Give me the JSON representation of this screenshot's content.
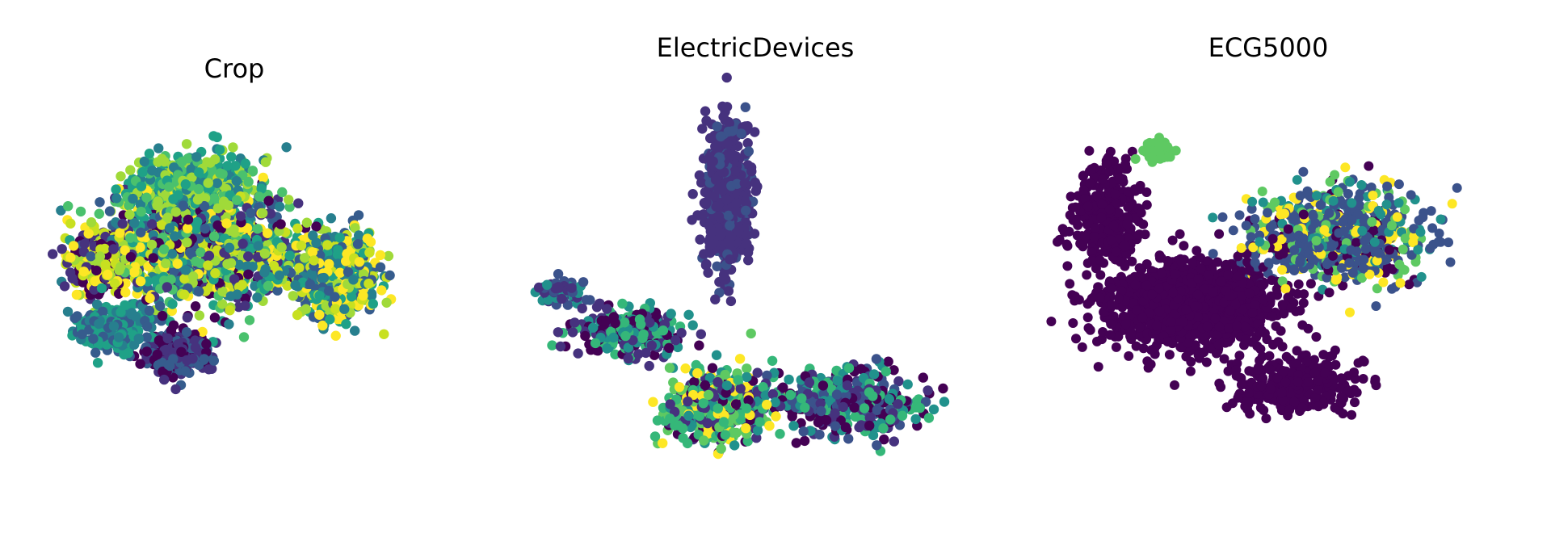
{
  "chart_data": [
    {
      "type": "scatter",
      "title": "Crop",
      "xlabel": "",
      "ylabel": "",
      "axes_visible": false,
      "grid": false,
      "colormap": "viridis",
      "xlim": [
        0,
        10
      ],
      "ylim": [
        0,
        10
      ],
      "class_colors": [
        "#440154",
        "#46327e",
        "#365c8d",
        "#277f8e",
        "#1fa187",
        "#4ac16d",
        "#a0da39",
        "#c8e020",
        "#fde725"
      ],
      "clusters": [
        {
          "cx": 4.0,
          "cy": 5.2,
          "sx": 2.4,
          "sy": 1.8,
          "n": 1300,
          "colors": [
            0,
            1,
            2,
            3,
            4,
            5,
            6,
            7,
            8
          ]
        },
        {
          "cx": 3.8,
          "cy": 7.2,
          "sx": 1.6,
          "sy": 1.1,
          "n": 500,
          "colors": [
            4,
            5,
            6,
            3
          ]
        },
        {
          "cx": 3.3,
          "cy": 1.8,
          "sx": 0.75,
          "sy": 0.6,
          "n": 450,
          "colors": [
            0,
            1,
            2
          ]
        },
        {
          "cx": 1.6,
          "cy": 2.6,
          "sx": 0.9,
          "sy": 0.7,
          "n": 260,
          "colors": [
            3,
            2,
            4
          ]
        },
        {
          "cx": 7.6,
          "cy": 4.3,
          "sx": 1.2,
          "sy": 1.4,
          "n": 550,
          "colors": [
            3,
            2,
            4,
            6,
            8,
            7
          ]
        },
        {
          "cx": 1.3,
          "cy": 4.8,
          "sx": 0.8,
          "sy": 1.0,
          "n": 350,
          "colors": [
            7,
            8,
            6,
            1,
            0
          ]
        }
      ]
    },
    {
      "type": "scatter",
      "title": "ElectricDevices",
      "xlabel": "",
      "ylabel": "",
      "axes_visible": false,
      "grid": false,
      "colormap": "viridis",
      "xlim": [
        0,
        10
      ],
      "ylim": [
        0,
        10
      ],
      "class_colors": [
        "#440154",
        "#46327e",
        "#3b528b",
        "#21918c",
        "#35b779",
        "#5ec962",
        "#fde725"
      ],
      "clusters": [
        {
          "cx": 4.4,
          "cy": 6.9,
          "sx": 0.45,
          "sy": 1.9,
          "n": 650,
          "colors": [
            1,
            1,
            1,
            1,
            2
          ]
        },
        {
          "cx": 2.3,
          "cy": 3.4,
          "sx": 1.3,
          "sy": 0.7,
          "n": 220,
          "colors": [
            1,
            0,
            4,
            3
          ]
        },
        {
          "cx": 4.2,
          "cy": 1.5,
          "sx": 1.1,
          "sy": 0.9,
          "n": 450,
          "colors": [
            4,
            1,
            0,
            3,
            5,
            6
          ]
        },
        {
          "cx": 7.0,
          "cy": 1.6,
          "sx": 1.6,
          "sy": 0.8,
          "n": 450,
          "colors": [
            1,
            0,
            4,
            3,
            2
          ]
        },
        {
          "cx": 0.8,
          "cy": 4.4,
          "sx": 0.5,
          "sy": 0.35,
          "n": 70,
          "colors": [
            1,
            3,
            2
          ]
        }
      ]
    },
    {
      "type": "scatter",
      "title": "ECG5000",
      "xlabel": "",
      "ylabel": "",
      "axes_visible": false,
      "grid": false,
      "colormap": "viridis",
      "xlim": [
        0,
        10
      ],
      "ylim": [
        0,
        10
      ],
      "class_colors": [
        "#440154",
        "#3b528b",
        "#21918c",
        "#5ec962",
        "#fde725"
      ],
      "clusters": [
        {
          "cx": 3.3,
          "cy": 4.2,
          "sx": 1.7,
          "sy": 1.1,
          "n": 1400,
          "colors": [
            0
          ]
        },
        {
          "cx": 1.6,
          "cy": 6.5,
          "sx": 0.7,
          "sy": 1.3,
          "n": 300,
          "colors": [
            0
          ]
        },
        {
          "cx": 5.3,
          "cy": 2.2,
          "sx": 1.3,
          "sy": 0.8,
          "n": 300,
          "colors": [
            0
          ]
        },
        {
          "cx": 6.2,
          "cy": 6.0,
          "sx": 1.7,
          "sy": 1.2,
          "n": 750,
          "colors": [
            1,
            1,
            1,
            1,
            2,
            3,
            4,
            0
          ]
        },
        {
          "cx": 2.6,
          "cy": 8.2,
          "sx": 0.35,
          "sy": 0.35,
          "n": 50,
          "colors": [
            3
          ]
        }
      ]
    }
  ]
}
